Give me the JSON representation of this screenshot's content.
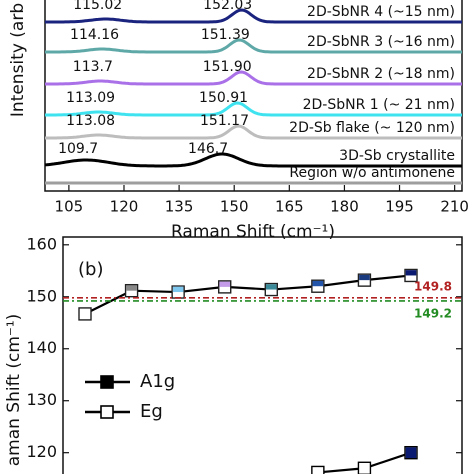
{
  "chart_data": [
    {
      "type": "spectra",
      "y_label": "Intensity (arb",
      "x_label": "Raman Shift (cm⁻¹)",
      "xlim": [
        98.5,
        212
      ],
      "xticks": [
        105,
        120,
        135,
        150,
        165,
        180,
        195,
        210
      ],
      "series": [
        {
          "name": "2D-SbNR 4 (~15 nm)",
          "color": "#1a237e",
          "peaks": [
            115.02,
            152.03
          ]
        },
        {
          "name": "2D-SbNR 3 (~16 nm)",
          "color": "#5fa8a8",
          "peaks": [
            114.16,
            151.39
          ]
        },
        {
          "name": "2D-SbNR 2 (~18 nm)",
          "color": "#a970e8",
          "peaks": [
            113.7,
            {
              "value": 151.9,
              "label": "151.90"
            }
          ]
        },
        {
          "name": "2D-SbNR 1 (~ 21 nm)",
          "color": "#3fe3f0",
          "peaks": [
            113.09,
            150.91
          ]
        },
        {
          "name": "2D-Sb flake (~ 120 nm)",
          "color": "#bdbdbd",
          "peaks": [
            113.08,
            151.17
          ]
        },
        {
          "name": "3D-Sb crystallite",
          "color": "#000000",
          "peaks": [
            109.7,
            146.7
          ]
        },
        {
          "name": "Region w/o antimonene",
          "color": "#9e9e9e",
          "peaks": []
        }
      ]
    },
    {
      "type": "line",
      "panel_label": "(b)",
      "y_label": "aman Shift (cm⁻¹)",
      "categories": [
        null,
        null,
        null,
        null,
        null,
        null,
        null,
        null
      ],
      "ylim": [
        115.9,
        161.5
      ],
      "yticks": [
        120,
        130,
        140,
        150,
        160
      ],
      "point_colors": [
        "#ffffff",
        "#888888",
        "#7ec8f0",
        "#c39be8",
        "#3a8a9a",
        "#2255aa",
        "#1a3a80",
        "#0a1a70"
      ],
      "series": [
        {
          "name": "A1g",
          "color": "#000000",
          "values": [
            146.7,
            151.17,
            150.91,
            151.9,
            151.39,
            152.03,
            153.2,
            154.1
          ]
        },
        {
          "name": "Eg",
          "color": "#000000",
          "values": [
            null,
            null,
            null,
            null,
            null,
            116.2,
            117.0,
            120.0
          ]
        }
      ],
      "ref_lines": [
        {
          "value": 149.8,
          "color": "#b22222"
        },
        {
          "value": 149.2,
          "color": "#228b22"
        }
      ]
    }
  ]
}
